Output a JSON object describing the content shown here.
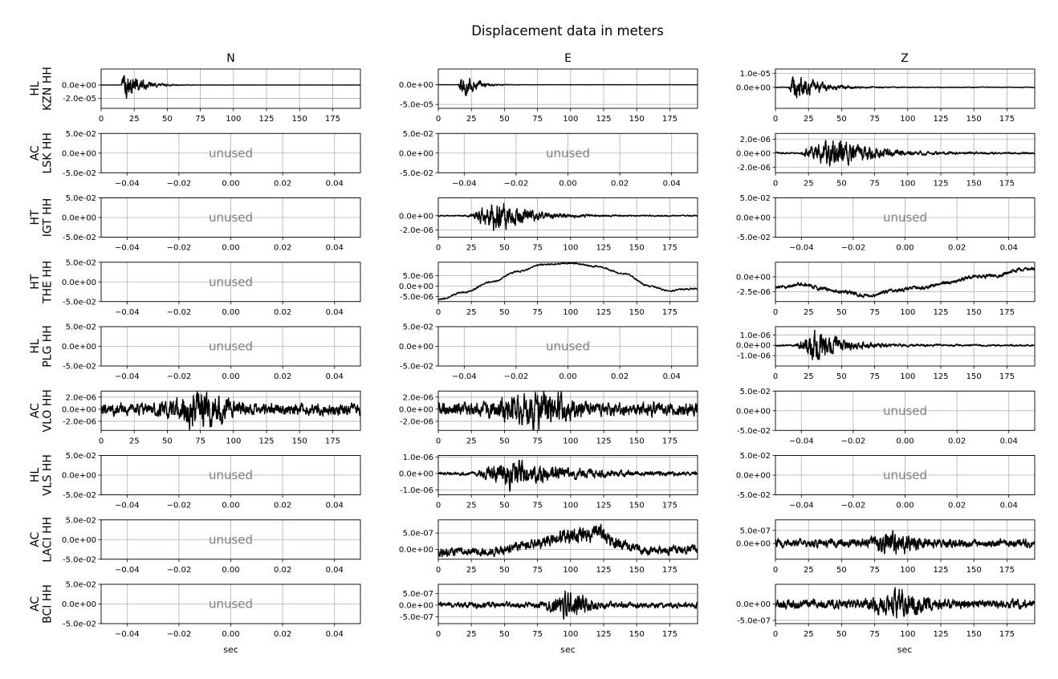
{
  "figure": {
    "title": "Displacement data in meters",
    "columns": [
      "N",
      "E",
      "Z"
    ],
    "xlabel": "sec",
    "unused_label": "unused"
  },
  "rows": [
    {
      "network": "HL",
      "station": "KZN HH"
    },
    {
      "network": "AC",
      "station": "LSK HH"
    },
    {
      "network": "HT",
      "station": "IGT HH"
    },
    {
      "network": "HT",
      "station": "THE HH"
    },
    {
      "network": "HL",
      "station": "PLG HH"
    },
    {
      "network": "AC",
      "station": "VLO HH"
    },
    {
      "network": "HL",
      "station": "VLS HH"
    },
    {
      "network": "AC",
      "station": "LACI HH"
    },
    {
      "network": "AC",
      "station": "BCI HH"
    }
  ],
  "unused_axes": {
    "xlim": [
      -0.05,
      0.05
    ],
    "x_ticks": [
      "−0.04",
      "−0.02",
      "0.00",
      "0.02",
      "0.04"
    ],
    "x_tick_values": [
      -0.04,
      -0.02,
      0.0,
      0.02,
      0.04
    ],
    "ylim": [
      -0.05,
      0.05
    ],
    "y_ticks": [
      "5.0e-02",
      "0.0e+00",
      "-5.0e-02"
    ],
    "y_tick_values": [
      0.05,
      0.0,
      -0.05
    ]
  },
  "chart_data": {
    "type": "line",
    "grid": true,
    "xlim": [
      0,
      196
    ],
    "x_ticks": [
      0,
      25,
      50,
      75,
      100,
      125,
      150,
      175
    ],
    "line_color": "#000000",
    "panels": [
      {
        "station": "KZN HH",
        "component": "N",
        "used": true,
        "ylim": [
          -3.5e-05,
          2.4e-05
        ],
        "y_ticks": [
          {
            "v": 0,
            "label": "0.0e+00"
          },
          {
            "v": -2e-05,
            "label": "-2.0e-05"
          }
        ],
        "wave": {
          "type": "burst",
          "onset": 15,
          "peak": 2.4e-05,
          "decay": 12,
          "floor": 1e-07
        }
      },
      {
        "station": "KZN HH",
        "component": "E",
        "used": true,
        "ylim": [
          -6e-05,
          4e-05
        ],
        "y_ticks": [
          {
            "v": 0,
            "label": "0.0e+00"
          },
          {
            "v": -5e-05,
            "label": "-5.0e-05"
          }
        ],
        "wave": {
          "type": "burst",
          "onset": 15,
          "peak": 3.8e-05,
          "decay": 10,
          "floor": 1e-07
        }
      },
      {
        "station": "KZN HH",
        "component": "Z",
        "used": true,
        "ylim": [
          -1.5e-05,
          1.3e-05
        ],
        "y_ticks": [
          {
            "v": 1e-05,
            "label": "1.0e-05"
          },
          {
            "v": 0,
            "label": "0.0e+00"
          }
        ],
        "wave": {
          "type": "burst",
          "onset": 10,
          "peak": 1.1e-05,
          "decay": 18,
          "floor": 3e-07
        }
      },
      {
        "station": "LSK HH",
        "component": "N",
        "used": false
      },
      {
        "station": "LSK HH",
        "component": "E",
        "used": false
      },
      {
        "station": "LSK HH",
        "component": "Z",
        "used": true,
        "ylim": [
          -2.8e-06,
          2.8e-06
        ],
        "y_ticks": [
          {
            "v": 2e-06,
            "label": "2.0e-06"
          },
          {
            "v": 0,
            "label": "0.0e+00"
          },
          {
            "v": -2e-06,
            "label": "-2.0e-06"
          }
        ],
        "wave": {
          "type": "burst",
          "onset": 18,
          "peak": 2.6e-06,
          "decay": 25,
          "floor": 1.5e-07,
          "center": 45
        }
      },
      {
        "station": "IGT HH",
        "component": "N",
        "used": false
      },
      {
        "station": "IGT HH",
        "component": "E",
        "used": true,
        "ylim": [
          -3e-06,
          2.5e-06
        ],
        "y_ticks": [
          {
            "v": 0,
            "label": "0.0e+00"
          },
          {
            "v": -2e-06,
            "label": "-2.0e-06"
          }
        ],
        "wave": {
          "type": "burst",
          "onset": 22,
          "peak": 2.5e-06,
          "decay": 22,
          "floor": 1e-07,
          "center": 45
        }
      },
      {
        "station": "IGT HH",
        "component": "Z",
        "used": false
      },
      {
        "station": "THE HH",
        "component": "N",
        "used": false
      },
      {
        "station": "THE HH",
        "component": "E",
        "used": true,
        "ylim": [
          -7.5e-06,
          1.15e-05
        ],
        "y_ticks": [
          {
            "v": 5e-06,
            "label": "5.0e-06"
          },
          {
            "v": 0,
            "label": "0.0e+00"
          },
          {
            "v": -5e-06,
            "label": "-5.0e-06"
          }
        ],
        "wave": {
          "type": "drift",
          "points": [
            [
              0,
              -6.5e-06
            ],
            [
              20,
              -3e-06
            ],
            [
              40,
              2e-06
            ],
            [
              60,
              7e-06
            ],
            [
              80,
              1.05e-05
            ],
            [
              100,
              1.1e-05
            ],
            [
              120,
              9.5e-06
            ],
            [
              140,
              6e-06
            ],
            [
              160,
              0
            ],
            [
              175,
              -2.5e-06
            ],
            [
              185,
              -1.5e-06
            ],
            [
              196,
              -1.2e-06
            ]
          ],
          "noise": 5e-07
        }
      },
      {
        "station": "THE HH",
        "component": "Z",
        "used": true,
        "ylim": [
          -4.2e-06,
          2.5e-06
        ],
        "y_ticks": [
          {
            "v": 0,
            "label": "0.0e+00"
          },
          {
            "v": -2.5e-06,
            "label": "-2.5e-06"
          }
        ],
        "wave": {
          "type": "drift",
          "points": [
            [
              0,
              -1.8e-06
            ],
            [
              20,
              -1.3e-06
            ],
            [
              35,
              -2e-06
            ],
            [
              50,
              -2.5e-06
            ],
            [
              70,
              -3.2e-06
            ],
            [
              90,
              -2.3e-06
            ],
            [
              110,
              -1.8e-06
            ],
            [
              130,
              -1e-06
            ],
            [
              150,
              0
            ],
            [
              165,
              2e-07
            ],
            [
              185,
              1.2e-06
            ],
            [
              196,
              1.4e-06
            ]
          ],
          "noise": 4e-07
        }
      },
      {
        "station": "PLG HH",
        "component": "N",
        "used": false
      },
      {
        "station": "PLG HH",
        "component": "E",
        "used": false
      },
      {
        "station": "PLG HH",
        "component": "Z",
        "used": true,
        "ylim": [
          -2e-06,
          1.8e-06
        ],
        "y_ticks": [
          {
            "v": 1e-06,
            "label": "1.0e-06"
          },
          {
            "v": 0,
            "label": "0.0e+00"
          },
          {
            "v": -1e-06,
            "label": "-1.0e-06"
          }
        ],
        "wave": {
          "type": "burst",
          "onset": 15,
          "peak": 1.8e-06,
          "decay": 20,
          "floor": 1e-07,
          "center": 30
        }
      },
      {
        "station": "VLO HH",
        "component": "N",
        "used": true,
        "ylim": [
          -3.5e-06,
          3e-06
        ],
        "y_ticks": [
          {
            "v": 2e-06,
            "label": "2.0e-06"
          },
          {
            "v": 0,
            "label": "0.0e+00"
          },
          {
            "v": -2e-06,
            "label": "-2.0e-06"
          }
        ],
        "wave": {
          "type": "noise",
          "amp": 1.1e-06,
          "bursts": [
            [
              75,
              2.5e-06,
              20
            ]
          ]
        }
      },
      {
        "station": "VLO HH",
        "component": "E",
        "used": true,
        "ylim": [
          -3.5e-06,
          3e-06
        ],
        "y_ticks": [
          {
            "v": 2e-06,
            "label": "2.0e-06"
          },
          {
            "v": 0,
            "label": "0.0e+00"
          },
          {
            "v": -2e-06,
            "label": "-2.0e-06"
          }
        ],
        "wave": {
          "type": "noise",
          "amp": 1.2e-06,
          "bursts": [
            [
              75,
              2.4e-06,
              25
            ]
          ]
        }
      },
      {
        "station": "VLO HH",
        "component": "Z",
        "used": false
      },
      {
        "station": "VLS HH",
        "component": "N",
        "used": false
      },
      {
        "station": "VLS HH",
        "component": "E",
        "used": true,
        "ylim": [
          -1.3e-06,
          1.1e-06
        ],
        "y_ticks": [
          {
            "v": 1e-06,
            "label": "1.0e-06"
          },
          {
            "v": 0,
            "label": "0.0e+00"
          },
          {
            "v": -1e-06,
            "label": "-1.0e-06"
          }
        ],
        "wave": {
          "type": "burst",
          "onset": 28,
          "peak": 1.1e-06,
          "decay": 35,
          "floor": 1.2e-07,
          "center": 55
        }
      },
      {
        "station": "VLS HH",
        "component": "Z",
        "used": false
      },
      {
        "station": "LACI HH",
        "component": "N",
        "used": false
      },
      {
        "station": "LACI HH",
        "component": "E",
        "used": true,
        "ylim": [
          -3e-07,
          9e-07
        ],
        "y_ticks": [
          {
            "v": 5e-07,
            "label": "5.0e-07"
          },
          {
            "v": 0,
            "label": "0.0e+00"
          }
        ],
        "wave": {
          "type": "drift",
          "points": [
            [
              0,
              -1e-07
            ],
            [
              40,
              -5e-08
            ],
            [
              70,
              1.5e-07
            ],
            [
              100,
              4e-07
            ],
            [
              120,
              5e-07
            ],
            [
              140,
              1.5e-07
            ],
            [
              160,
              -5e-08
            ],
            [
              196,
              0
            ]
          ],
          "noise": 1.6e-07,
          "bursts": [
            [
              110,
              2.5e-07,
              25
            ]
          ]
        }
      },
      {
        "station": "LACI HH",
        "component": "Z",
        "used": true,
        "ylim": [
          -6e-07,
          9e-07
        ],
        "y_ticks": [
          {
            "v": 5e-07,
            "label": "5.0e-07"
          },
          {
            "v": 0,
            "label": "0.0e+00"
          }
        ],
        "wave": {
          "type": "noise",
          "amp": 1.8e-07,
          "bursts": [
            [
              90,
              4e-07,
              15
            ]
          ]
        }
      },
      {
        "station": "BCI HH",
        "component": "N",
        "used": false
      },
      {
        "station": "BCI HH",
        "component": "E",
        "used": true,
        "ylim": [
          -8e-07,
          9e-07
        ],
        "y_ticks": [
          {
            "v": 5e-07,
            "label": "5.0e-07"
          },
          {
            "v": 0,
            "label": "0.0e+00"
          },
          {
            "v": -5e-07,
            "label": "-5.0e-07"
          }
        ],
        "wave": {
          "type": "noise",
          "amp": 1.4e-07,
          "bursts": [
            [
              100,
              5e-07,
              15
            ]
          ]
        }
      },
      {
        "station": "BCI HH",
        "component": "Z",
        "used": true,
        "ylim": [
          -6e-07,
          6e-07
        ],
        "y_ticks": [
          {
            "v": 0,
            "label": "0.0e+00"
          },
          {
            "v": -5e-07,
            "label": "-5.0e-07"
          }
        ],
        "wave": {
          "type": "noise",
          "amp": 1.5e-07,
          "bursts": [
            [
              95,
              3.5e-07,
              20
            ]
          ]
        }
      }
    ]
  }
}
